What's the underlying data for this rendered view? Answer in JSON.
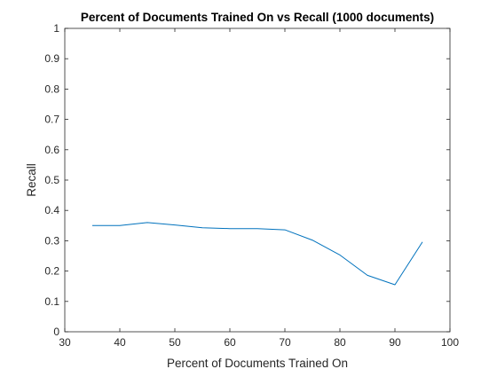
{
  "chart_data": {
    "type": "line",
    "title": "Percent of Documents Trained On vs Recall (1000 documents)",
    "xlabel": "Percent of Documents Trained On",
    "ylabel": "Recall",
    "xlim": [
      30,
      100
    ],
    "ylim": [
      0,
      1
    ],
    "xticks": [
      "30",
      "40",
      "50",
      "60",
      "70",
      "80",
      "90",
      "100"
    ],
    "yticks": [
      "0",
      "0.1",
      "0.2",
      "0.3",
      "0.4",
      "0.5",
      "0.6",
      "0.7",
      "0.8",
      "0.9",
      "1"
    ],
    "grid": false,
    "series": [
      {
        "color": "#0072BD",
        "x": [
          35,
          40,
          45,
          50,
          55,
          60,
          65,
          70,
          75,
          80,
          85,
          90,
          95
        ],
        "y": [
          0.35,
          0.35,
          0.36,
          0.352,
          0.343,
          0.34,
          0.34,
          0.336,
          0.302,
          0.253,
          0.186,
          0.155,
          0.296
        ]
      }
    ]
  }
}
